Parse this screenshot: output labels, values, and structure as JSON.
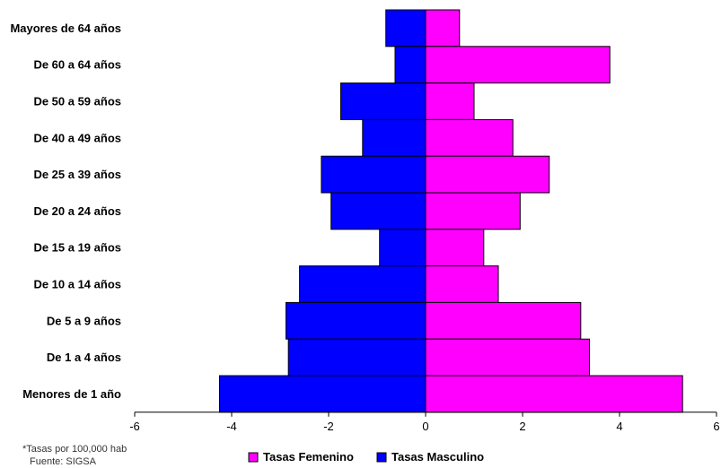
{
  "chart_data": {
    "type": "bar",
    "orientation": "horizontal",
    "categories": [
      "Mayores de 64 años",
      "De 60 a 64 años",
      "De 50 a 59 años",
      "De 40 a 49 años",
      "De 25 a 39 años",
      "De 20 a 24 años",
      "De 15 a 19 años",
      "De 10 a 14 años",
      "De 5 a 9 años",
      "De 1 a 4 años",
      "Menores de 1 año"
    ],
    "series": [
      {
        "name": "Tasas Femenino",
        "color": "#ff00ff",
        "values": [
          0.7,
          3.8,
          1.0,
          1.8,
          2.55,
          1.95,
          1.2,
          1.5,
          3.2,
          3.38,
          5.3
        ]
      },
      {
        "name": "Tasas Masculino",
        "color": "#0000ff",
        "values": [
          -0.82,
          -0.63,
          -1.75,
          -1.3,
          -2.15,
          -1.95,
          -0.95,
          -2.6,
          -2.88,
          -2.83,
          -4.25
        ]
      }
    ],
    "xlim": [
      -6,
      6
    ],
    "xticks": [
      "-6",
      "-4",
      "-2",
      "0",
      "2",
      "4",
      "6"
    ],
    "grid": false,
    "legend": "bottom"
  },
  "notes": {
    "rate_note": "*Tasas por 100,000 hab",
    "source": "Fuente: SIGSA"
  }
}
